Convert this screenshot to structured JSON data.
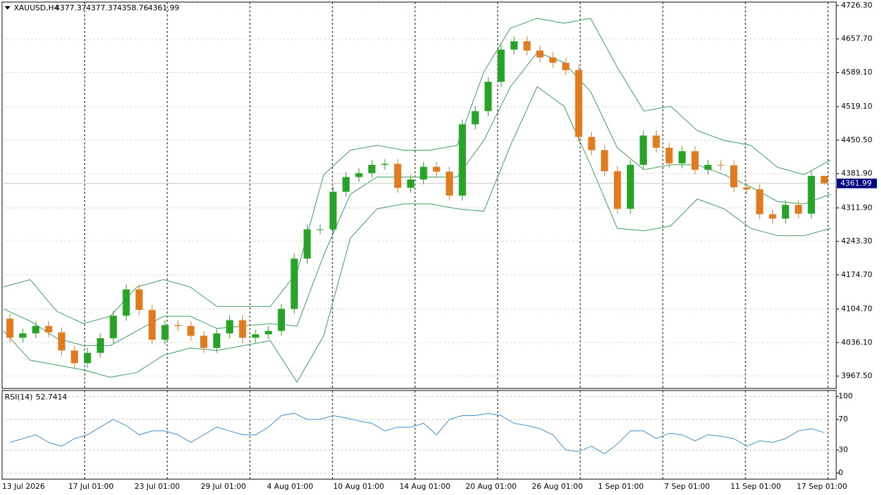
{
  "chart_data": {
    "type": "candlestick",
    "symbol": "XAUUSD,H4",
    "open": [
      4085,
      4046,
      4055,
      4070,
      4057,
      4020,
      3994,
      4015,
      4045,
      4091,
      4145,
      4103,
      4042,
      4072,
      4070,
      4050,
      4025,
      4055,
      4082,
      4046,
      4053,
      4060,
      4105,
      4208,
      4268,
      4268,
      4345,
      4375,
      4383,
      4400,
      4402,
      4353,
      4370,
      4396,
      4386,
      4337,
      4483,
      4510,
      4570,
      4636,
      4653,
      4634,
      4620,
      4609,
      4594,
      4457,
      4430,
      4387,
      4310,
      4400,
      4460,
      4435,
      4403,
      4428,
      4390,
      4400,
      4399,
      4354,
      4350,
      4299,
      4290,
      4318,
      4300,
      4377.37
    ],
    "high": [
      4095,
      4065,
      4080,
      4080,
      4067,
      4030,
      4025,
      4055,
      4101,
      4155,
      4155,
      4113,
      4082,
      4082,
      4080,
      4060,
      4065,
      4092,
      4092,
      4063,
      4070,
      4115,
      4218,
      4278,
      4278,
      4355,
      4385,
      4393,
      4410,
      4412,
      4412,
      4380,
      4406,
      4406,
      4396,
      4493,
      4520,
      4580,
      4646,
      4663,
      4663,
      4644,
      4630,
      4619,
      4604,
      4467,
      4440,
      4397,
      4410,
      4470,
      4470,
      4445,
      4438,
      4438,
      4410,
      4410,
      4409,
      4364,
      4360,
      4309,
      4328,
      4328,
      4387,
      4377.37
    ],
    "low": [
      4036,
      4036,
      4045,
      4047,
      4010,
      3984,
      3984,
      4005,
      4035,
      4081,
      4093,
      4032,
      4032,
      4060,
      4040,
      4015,
      4015,
      4045,
      4036,
      4036,
      4043,
      4050,
      4095,
      4198,
      4258,
      4258,
      4335,
      4365,
      4373,
      4390,
      4343,
      4343,
      4360,
      4376,
      4327,
      4327,
      4473,
      4500,
      4560,
      4626,
      4624,
      4610,
      4599,
      4584,
      4447,
      4420,
      4377,
      4300,
      4300,
      4390,
      4425,
      4393,
      4393,
      4380,
      4380,
      4389,
      4344,
      4340,
      4289,
      4280,
      4280,
      4290,
      4290,
      4358.76
    ],
    "close": [
      4046,
      4055,
      4070,
      4057,
      4020,
      3994,
      4015,
      4045,
      4091,
      4145,
      4103,
      4042,
      4072,
      4070,
      4050,
      4025,
      4055,
      4082,
      4046,
      4053,
      4060,
      4105,
      4208,
      4268,
      4268,
      4345,
      4375,
      4383,
      4400,
      4402,
      4353,
      4370,
      4396,
      4386,
      4337,
      4483,
      4510,
      4570,
      4636,
      4653,
      4634,
      4620,
      4609,
      4594,
      4457,
      4430,
      4387,
      4310,
      4400,
      4460,
      4435,
      4403,
      4428,
      4390,
      4400,
      4399,
      4354,
      4350,
      4299,
      4290,
      4318,
      4300,
      4377.37,
      4361.99
    ],
    "up_color": "#27a327",
    "down_color": "#e07b1f",
    "series": [
      {
        "color": "#3c9a5f",
        "values": [
          4150,
          4165,
          4100,
          4075,
          4090,
          4150,
          4165,
          4150,
          4110,
          4110,
          4110,
          4180,
          4380,
          4430,
          4440,
          4430,
          4430,
          4440,
          4590,
          4680,
          4700,
          4690,
          4700,
          4600,
          4510,
          4520,
          4470,
          4450,
          4440,
          4395,
          4380,
          4410
        ]
      },
      {
        "color": "#3c9a5f",
        "values": [
          4105,
          4080,
          4045,
          4030,
          4030,
          4060,
          4090,
          4090,
          4065,
          4070,
          4075,
          4070,
          4215,
          4340,
          4375,
          4375,
          4375,
          4375,
          4450,
          4560,
          4630,
          4610,
          4550,
          4435,
          4390,
          4400,
          4400,
          4380,
          4355,
          4325,
          4320,
          4340
        ]
      },
      {
        "color": "#3c9a5f",
        "values": [
          4060,
          4000,
          3990,
          3980,
          3965,
          3975,
          4010,
          4025,
          4020,
          4030,
          4040,
          3955,
          4050,
          4250,
          4310,
          4320,
          4320,
          4310,
          4305,
          4440,
          4560,
          4520,
          4400,
          4270,
          4265,
          4275,
          4330,
          4310,
          4270,
          4255,
          4255,
          4270
        ]
      }
    ],
    "ylim": [
      3942.2,
      4733.3
    ],
    "yticks": [
      {
        "value": 4726.3,
        "label": "4726.30"
      },
      {
        "value": 4657.7,
        "label": "4657.70"
      },
      {
        "value": 4589.1,
        "label": "4589.10"
      },
      {
        "value": 4519.1,
        "label": "4519.10"
      },
      {
        "value": 4450.5,
        "label": "4450.50"
      },
      {
        "value": 4381.9,
        "label": "4381.90"
      },
      {
        "value": 4311.9,
        "label": "4311.90"
      },
      {
        "value": 4243.3,
        "label": "4243.30"
      },
      {
        "value": 4174.7,
        "label": "4174.70"
      },
      {
        "value": 4104.7,
        "label": "4104.70"
      },
      {
        "value": 4036.1,
        "label": "4036.10"
      },
      {
        "value": 3967.5,
        "label": "3967.50"
      }
    ],
    "grid": true,
    "xtick_labels": [
      "13 Jul 2026",
      "17 Jul 01:00",
      "23 Jul 01:00",
      "29 Jul 01:00",
      "4 Aug 01:00",
      "10 Aug 01:00",
      "14 Aug 01:00",
      "20 Aug 01:00",
      "26 Aug 01:00",
      "1 Sep 01:00",
      "7 Sep 01:00",
      "11 Sep 01:00",
      "17 Sep 01:00"
    ],
    "rsi": {
      "title": "RSI(14)",
      "color": "#3d8fc6",
      "values": [
        40,
        45,
        50,
        40,
        35,
        45,
        50,
        60,
        70,
        62,
        50,
        55,
        55,
        50,
        40,
        50,
        60,
        55,
        50,
        50,
        60,
        75,
        78,
        70,
        70,
        75,
        72,
        68,
        65,
        55,
        60,
        60,
        65,
        50,
        70,
        75,
        75,
        78,
        75,
        65,
        62,
        58,
        50,
        30,
        28,
        35,
        25,
        38,
        55,
        55,
        45,
        52,
        50,
        42,
        50,
        48,
        45,
        35,
        42,
        40,
        45,
        55,
        58,
        52.7414
      ],
      "ylim": [
        -8,
        106
      ],
      "yticks": [
        100,
        70,
        30,
        0
      ]
    }
  }
}
